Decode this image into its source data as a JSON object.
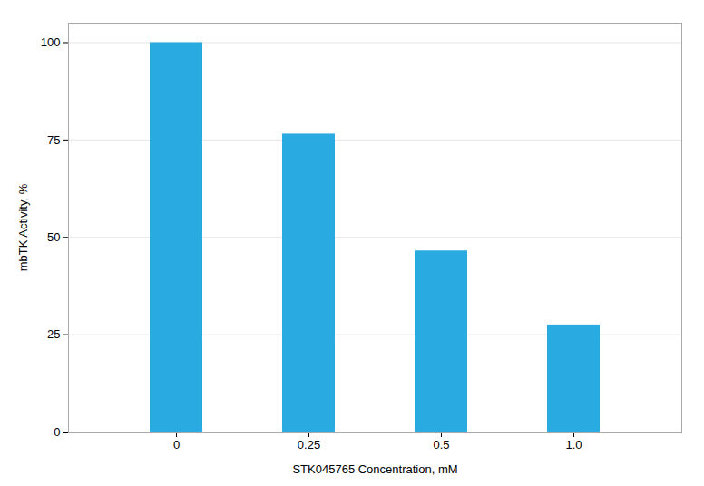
{
  "chart_data": {
    "type": "bar",
    "categories": [
      "0",
      "0.25",
      "0.5",
      "1.0"
    ],
    "values": [
      100,
      76.5,
      46.5,
      27.5
    ],
    "color": "#29ABE2",
    "xlabel": "STK045765 Concentration, mM",
    "ylabel": "mbTK Activity, %",
    "ylim": [
      0,
      105
    ],
    "yticks": [
      0,
      25,
      50,
      75,
      100
    ],
    "grid": true
  }
}
